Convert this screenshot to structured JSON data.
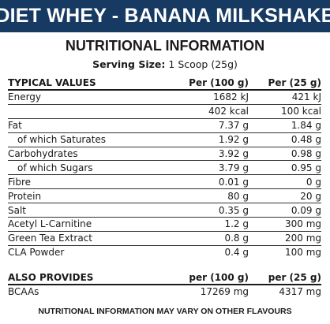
{
  "banner": "DIET WHEY - BANANA MILKSHAKE",
  "title": "NUTRITIONAL INFORMATION",
  "serving": {
    "label": "Serving Size:",
    "value": "1 Scoop (25g)"
  },
  "main_table": {
    "headers": [
      "TYPICAL VALUES",
      "Per (100 g)",
      "Per (25 g)"
    ],
    "rows": [
      {
        "name": "Energy",
        "v100": "1682 kJ",
        "v25": "421 kJ",
        "sub": false,
        "sep": false
      },
      {
        "name": "",
        "v100": "402 kcal",
        "v25": "100 kcal",
        "sub": false,
        "sep": true
      },
      {
        "name": "Fat",
        "v100": "7.37 g",
        "v25": "1.84 g",
        "sub": false,
        "sep": true
      },
      {
        "name": "of which Saturates",
        "v100": "1.92 g",
        "v25": "0.48 g",
        "sub": true,
        "sep": true
      },
      {
        "name": "Carbohydrates",
        "v100": "3.92 g",
        "v25": "0.98 g",
        "sub": false,
        "sep": true
      },
      {
        "name": "of which Sugars",
        "v100": "3.79 g",
        "v25": "0.95 g",
        "sub": true,
        "sep": true
      },
      {
        "name": "Fibre",
        "v100": "0.01 g",
        "v25": "0 g",
        "sub": false,
        "sep": true
      },
      {
        "name": "Protein",
        "v100": "80 g",
        "v25": "20 g",
        "sub": false,
        "sep": true
      },
      {
        "name": "Salt",
        "v100": "0.35 g",
        "v25": "0.09 g",
        "sub": false,
        "sep": true
      },
      {
        "name": "Acetyl L-Carnitine",
        "v100": "1.2 g",
        "v25": "300 mg",
        "sub": false,
        "sep": true
      },
      {
        "name": "Green Tea Extract",
        "v100": "0.8 g",
        "v25": "200 mg",
        "sub": false,
        "sep": true
      },
      {
        "name": "CLA Powder",
        "v100": "0.4 g",
        "v25": "100 mg",
        "sub": false,
        "sep": true
      }
    ]
  },
  "also_table": {
    "headers": [
      "ALSO PROVIDES",
      "per (100 g)",
      "per (25 g)"
    ],
    "rows": [
      {
        "name": "BCAAs",
        "v100": "17269 mg",
        "v25": "4317 mg",
        "sub": false,
        "sep": false
      }
    ]
  },
  "footnote": "NUTRITIONAL INFORMATION MAY VARY ON OTHER FLAVOURS"
}
